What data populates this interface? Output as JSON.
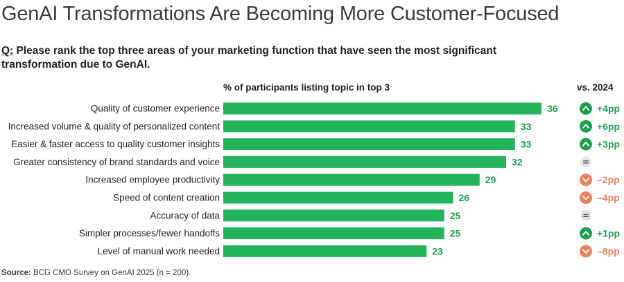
{
  "title": "GenAI Transformations Are Becoming More Customer-Focused",
  "question_prefix": "Q:",
  "question_text": " Please rank the top three areas of your marketing function that have seen the most significant transformation due to GenAI.",
  "column_headers": {
    "percent": "% of participants listing topic in top 3",
    "change": "vs. 2024"
  },
  "source_label": "Source:",
  "source_text": " BCG CMO Survey on GenAI 2025 (n = 200).",
  "colors": {
    "bar": "#22b45a",
    "value_text": "#1a9e4b",
    "up": "#1aa14f",
    "down": "#ee8060",
    "neutral_bg": "#e4e4e4",
    "neutral_fg": "#555555"
  },
  "chart_data": {
    "type": "bar",
    "orientation": "horizontal",
    "title": "GenAI Transformations Are Becoming More Customer-Focused",
    "xlabel": "% of participants listing topic in top 3",
    "ylabel": "",
    "xlim": [
      0,
      36
    ],
    "categories": [
      "Quality of customer experience",
      "Increased volume & quality of personalized content",
      "Easier & faster access to quality customer insights",
      "Greater consistency of brand standards and voice",
      "Increased employee productivity",
      "Speed of content creation",
      "Accuracy of data",
      "Simpler processes/fewer handoffs",
      "Level of manual work needed"
    ],
    "values": [
      36,
      33,
      33,
      32,
      29,
      26,
      25,
      25,
      23
    ],
    "change_vs_2024": [
      {
        "direction": "up",
        "label": "+4pp"
      },
      {
        "direction": "up",
        "label": "+6pp"
      },
      {
        "direction": "up",
        "label": "+3pp"
      },
      {
        "direction": "same",
        "label": "="
      },
      {
        "direction": "down",
        "label": "–2pp"
      },
      {
        "direction": "down",
        "label": "–4pp"
      },
      {
        "direction": "same",
        "label": "="
      },
      {
        "direction": "up",
        "label": "+1pp"
      },
      {
        "direction": "down",
        "label": "–8pp"
      }
    ]
  }
}
